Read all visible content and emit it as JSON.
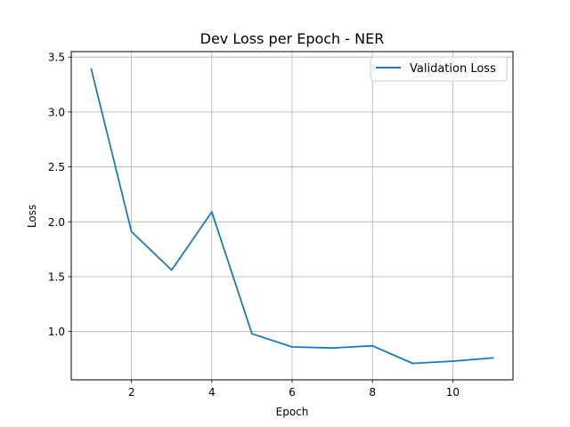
{
  "chart_data": {
    "type": "line",
    "title": "Dev Loss per Epoch - NER",
    "xlabel": "Epoch",
    "ylabel": "Loss",
    "xlim": [
      0.5,
      11.5
    ],
    "ylim": [
      0.56,
      3.55
    ],
    "xticks": [
      2,
      4,
      6,
      8,
      10
    ],
    "yticks": [
      1.0,
      1.5,
      2.0,
      2.5,
      3.0,
      3.5
    ],
    "ytick_labels": [
      "1.0",
      "1.5",
      "2.0",
      "2.5",
      "3.0",
      "3.5"
    ],
    "grid": true,
    "legend_position": "top-right",
    "series": [
      {
        "name": "Validation Loss",
        "color": "#1f77b4",
        "x": [
          1,
          2,
          3,
          4,
          5,
          6,
          7,
          8,
          9,
          10,
          11
        ],
        "y": [
          3.39,
          1.91,
          1.56,
          2.09,
          0.98,
          0.86,
          0.85,
          0.87,
          0.71,
          0.73,
          0.76
        ]
      }
    ]
  }
}
